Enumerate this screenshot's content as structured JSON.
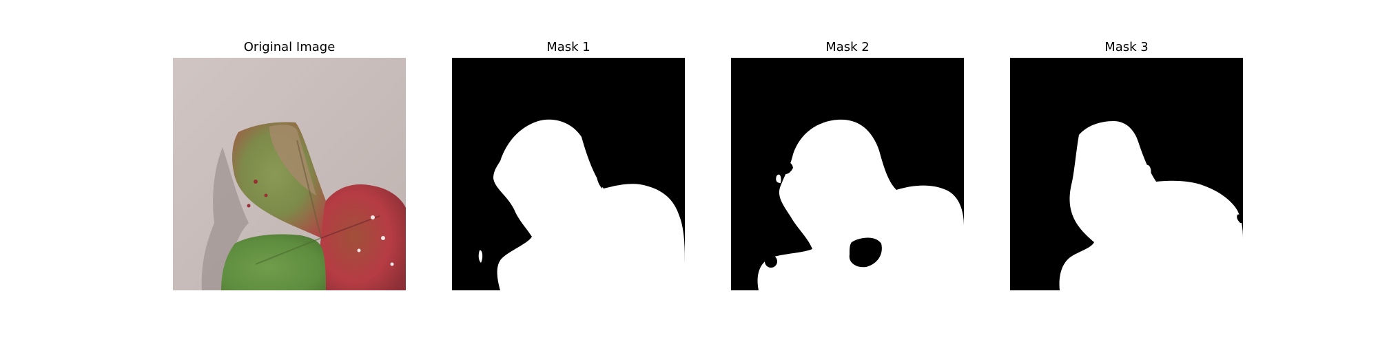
{
  "panels": [
    {
      "title": "Original Image",
      "kind": "photo"
    },
    {
      "title": "Mask 1",
      "kind": "mask"
    },
    {
      "title": "Mask 2",
      "kind": "mask"
    },
    {
      "title": "Mask 3",
      "kind": "mask"
    }
  ],
  "colors": {
    "background": "#c9bdb9",
    "mask_background": "#000000",
    "mask_foreground": "#ffffff",
    "leaf_green": "#6a9a4a",
    "leaf_red": "#b23a3e",
    "leaf_brown": "#a48a6a"
  }
}
